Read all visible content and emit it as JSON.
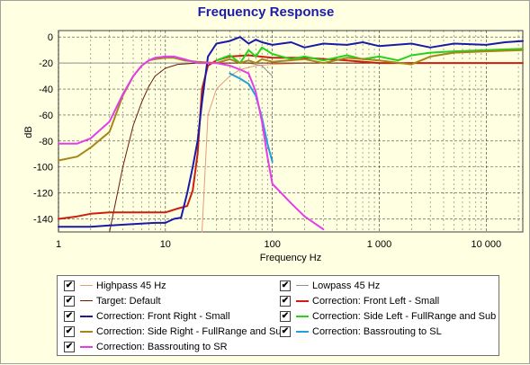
{
  "chart_data": {
    "type": "line",
    "title": "Frequency Response",
    "xlabel": "Frequency Hz",
    "ylabel": "dB",
    "xscale": "log",
    "xlim": [
      1,
      22000
    ],
    "ylim": [
      -150,
      5
    ],
    "x_ticks": [
      {
        "value": 1,
        "label": "1"
      },
      {
        "value": 10,
        "label": "10"
      },
      {
        "value": 100,
        "label": "100"
      },
      {
        "value": 1000,
        "label": "1 000"
      },
      {
        "value": 10000,
        "label": "10 000"
      }
    ],
    "y_ticks": [
      0,
      -20,
      -40,
      -60,
      -80,
      -100,
      -120,
      -140
    ],
    "grid": true,
    "legend_position": "bottom",
    "series": [
      {
        "name": "Highpass   45 Hz",
        "color": "#e89a7c",
        "width": 1,
        "checked": true,
        "points": [
          [
            22,
            -150
          ],
          [
            25,
            -60
          ],
          [
            30,
            -40
          ],
          [
            40,
            -30
          ],
          [
            50,
            -25
          ],
          [
            70,
            -22
          ],
          [
            100,
            -21
          ],
          [
            200,
            -20
          ],
          [
            1000,
            -20
          ],
          [
            22000,
            -20
          ]
        ]
      },
      {
        "name": "Lowpass   45 Hz",
        "color": "#909090",
        "width": 1,
        "checked": true,
        "points": [
          [
            1,
            -20
          ],
          [
            60,
            -20
          ],
          [
            80,
            -22
          ],
          [
            100,
            -30
          ]
        ]
      },
      {
        "name": "Target: Default",
        "color": "#6b1b08",
        "width": 1,
        "checked": true,
        "points": [
          [
            3,
            -150
          ],
          [
            4,
            -100
          ],
          [
            5,
            -68
          ],
          [
            6,
            -50
          ],
          [
            7,
            -38
          ],
          [
            8,
            -30
          ],
          [
            10,
            -24
          ],
          [
            13,
            -21
          ],
          [
            20,
            -20
          ],
          [
            100,
            -20
          ],
          [
            1000,
            -20
          ],
          [
            22000,
            -20
          ]
        ]
      },
      {
        "name": "Correction: Front Left - Small",
        "color": "#cc1f0e",
        "width": 2,
        "checked": true,
        "points": [
          [
            1,
            -140
          ],
          [
            1.5,
            -138
          ],
          [
            2,
            -136
          ],
          [
            3,
            -135
          ],
          [
            5,
            -135
          ],
          [
            8,
            -135
          ],
          [
            10,
            -135
          ],
          [
            13,
            -132
          ],
          [
            16,
            -130
          ],
          [
            18,
            -118
          ],
          [
            20,
            -90
          ],
          [
            22,
            -40
          ],
          [
            25,
            -22
          ],
          [
            30,
            -18
          ],
          [
            40,
            -15
          ],
          [
            60,
            -14
          ],
          [
            100,
            -16
          ],
          [
            200,
            -16
          ],
          [
            500,
            -18
          ],
          [
            1000,
            -20
          ],
          [
            2000,
            -20
          ],
          [
            5000,
            -20
          ],
          [
            10000,
            -20
          ],
          [
            22000,
            -20
          ]
        ]
      },
      {
        "name": "Correction: Front Right - Small",
        "color": "#1a1aa8",
        "width": 2,
        "checked": true,
        "points": [
          [
            1,
            -146
          ],
          [
            2,
            -146
          ],
          [
            3,
            -145
          ],
          [
            5,
            -144
          ],
          [
            8,
            -143
          ],
          [
            10,
            -143
          ],
          [
            12,
            -140
          ],
          [
            14,
            -139
          ],
          [
            16,
            -120
          ],
          [
            18,
            -100
          ],
          [
            20,
            -80
          ],
          [
            22,
            -50
          ],
          [
            25,
            -15
          ],
          [
            30,
            -5
          ],
          [
            40,
            -3
          ],
          [
            50,
            0
          ],
          [
            60,
            -5
          ],
          [
            70,
            -2
          ],
          [
            80,
            -4
          ],
          [
            100,
            -6
          ],
          [
            150,
            -4
          ],
          [
            200,
            -8
          ],
          [
            300,
            -5
          ],
          [
            500,
            -6
          ],
          [
            700,
            -4
          ],
          [
            1000,
            -7
          ],
          [
            2000,
            -5
          ],
          [
            3000,
            -8
          ],
          [
            5000,
            -5
          ],
          [
            10000,
            -6
          ],
          [
            15000,
            -4
          ],
          [
            22000,
            -3
          ]
        ]
      },
      {
        "name": "Correction: Side Left - FullRange and Sub",
        "color": "#23d41c",
        "width": 2,
        "checked": true,
        "points": [
          [
            30,
            -18
          ],
          [
            40,
            -14
          ],
          [
            50,
            -20
          ],
          [
            60,
            -10
          ],
          [
            70,
            -15
          ],
          [
            80,
            -8
          ],
          [
            100,
            -13
          ],
          [
            150,
            -17
          ],
          [
            200,
            -15
          ],
          [
            300,
            -18
          ],
          [
            500,
            -14
          ],
          [
            700,
            -17
          ],
          [
            1000,
            -15
          ],
          [
            1500,
            -18
          ],
          [
            2000,
            -14
          ],
          [
            3000,
            -12
          ],
          [
            5000,
            -11
          ],
          [
            10000,
            -10
          ],
          [
            22000,
            -9
          ]
        ]
      },
      {
        "name": "Correction: Side Right - FullRange and Sub",
        "color": "#a5861a",
        "width": 2,
        "checked": true,
        "points": [
          [
            1,
            -95
          ],
          [
            1.5,
            -92
          ],
          [
            2,
            -85
          ],
          [
            3,
            -73
          ],
          [
            4,
            -45
          ],
          [
            5,
            -30
          ],
          [
            6,
            -22
          ],
          [
            7,
            -18
          ],
          [
            8,
            -17
          ],
          [
            10,
            -16
          ],
          [
            12,
            -16
          ],
          [
            15,
            -18
          ],
          [
            20,
            -19
          ],
          [
            30,
            -20
          ],
          [
            40,
            -17
          ],
          [
            50,
            -20
          ],
          [
            60,
            -18
          ],
          [
            70,
            -20
          ],
          [
            80,
            -17
          ],
          [
            100,
            -19
          ],
          [
            200,
            -17
          ],
          [
            300,
            -20
          ],
          [
            500,
            -16
          ],
          [
            1000,
            -18
          ],
          [
            2000,
            -21
          ],
          [
            3000,
            -15
          ],
          [
            5000,
            -12
          ],
          [
            10000,
            -11
          ],
          [
            22000,
            -10
          ]
        ]
      },
      {
        "name": "Correction: Bassrouting to SL",
        "color": "#22a0dd",
        "width": 2,
        "checked": true,
        "points": [
          [
            40,
            -28
          ],
          [
            50,
            -32
          ],
          [
            60,
            -36
          ],
          [
            70,
            -45
          ],
          [
            80,
            -62
          ],
          [
            90,
            -82
          ],
          [
            100,
            -96
          ]
        ]
      },
      {
        "name": "Correction: Bassrouting to SR",
        "color": "#e33ee8",
        "width": 2,
        "checked": true,
        "points": [
          [
            1,
            -82
          ],
          [
            1.5,
            -82
          ],
          [
            2,
            -78
          ],
          [
            3,
            -65
          ],
          [
            4,
            -44
          ],
          [
            5,
            -30
          ],
          [
            6,
            -22
          ],
          [
            7,
            -18
          ],
          [
            8,
            -16
          ],
          [
            10,
            -15
          ],
          [
            12,
            -15
          ],
          [
            15,
            -17
          ],
          [
            20,
            -20
          ],
          [
            30,
            -20
          ],
          [
            40,
            -22
          ],
          [
            50,
            -25
          ],
          [
            60,
            -28
          ],
          [
            70,
            -42
          ],
          [
            80,
            -65
          ],
          [
            90,
            -92
          ],
          [
            100,
            -113
          ],
          [
            150,
            -128
          ],
          [
            200,
            -138
          ],
          [
            300,
            -148
          ]
        ]
      }
    ]
  }
}
